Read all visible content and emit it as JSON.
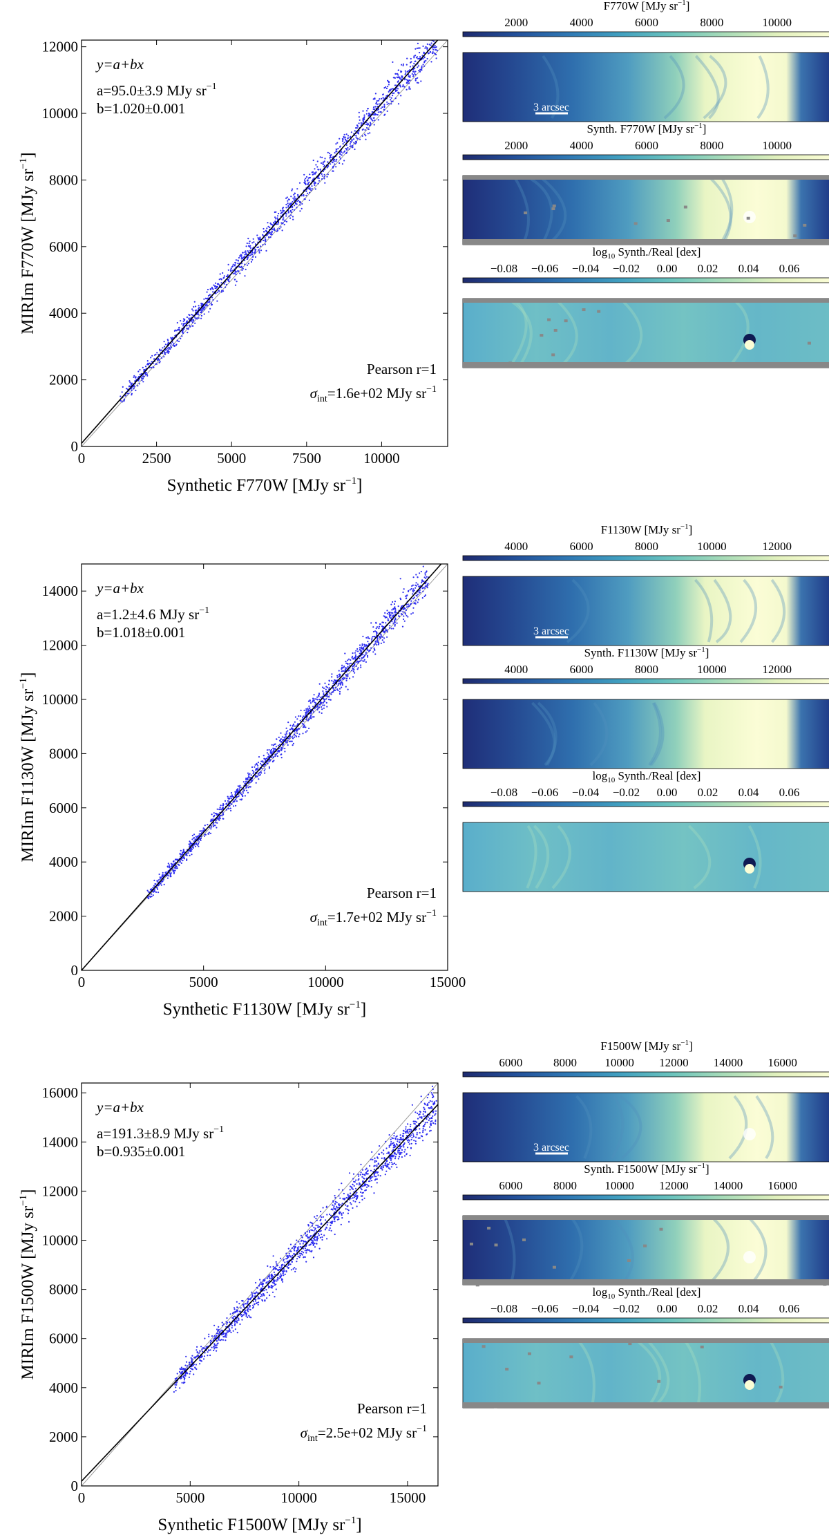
{
  "colors": {
    "points": "#2d2df0",
    "fit_line": "#000000",
    "identity_line": "#9a9a9a",
    "colormap": [
      "#1e2a6e",
      "#23509a",
      "#2f78b4",
      "#41a0c0",
      "#6cc4bd",
      "#a9dcb8",
      "#e2f1bd",
      "#fbfdd6"
    ],
    "masked": "#888888"
  },
  "scale_bar_label": "3 arcsec",
  "chart_data": [
    {
      "type": "scatter",
      "filter": "F770W",
      "xlabel": "Synthetic F770W [MJy sr",
      "ylabel": "MIRIm F770W [MJy sr",
      "unit_exp": "−1",
      "xlim": [
        0,
        12200
      ],
      "ylim": [
        0,
        12200
      ],
      "xticks": [
        0,
        2500,
        5000,
        7500,
        10000
      ],
      "yticks": [
        0,
        2000,
        4000,
        6000,
        8000,
        10000,
        12000
      ],
      "model": "y=a+bx",
      "a_text": "a=95.0±3.9 MJy sr",
      "b_text": "b=1.020±0.001",
      "pearson_text": "Pearson r=1",
      "sigma_text": "=1.6e+02 MJy sr",
      "fit": {
        "a": 95.0,
        "b": 1.02
      },
      "data_range": [
        1300,
        11900
      ],
      "scatter_width": 180,
      "maps": [
        {
          "label": "F770W [MJy sr",
          "ticks": [
            "2000",
            "4000",
            "6000",
            "8000",
            "10000"
          ],
          "kind": "image",
          "mask": false,
          "scale_bar": true
        },
        {
          "label": "Synth. F770W [MJy sr",
          "ticks": [
            "2000",
            "4000",
            "6000",
            "8000",
            "10000"
          ],
          "kind": "image",
          "mask": true,
          "scale_bar": false
        },
        {
          "label": "log10 Synth./Real [dex]",
          "ticks": [
            "−0.08",
            "−0.06",
            "−0.04",
            "−0.02",
            "0.00",
            "0.02",
            "0.04",
            "0.06"
          ],
          "kind": "ratio",
          "mask": true,
          "scale_bar": false
        }
      ]
    },
    {
      "type": "scatter",
      "filter": "F1130W",
      "xlabel": "Synthetic F1130W [MJy sr",
      "ylabel": "MIRIm F1130W [MJy sr",
      "unit_exp": "−1",
      "xlim": [
        0,
        15000
      ],
      "ylim": [
        0,
        15000
      ],
      "xticks": [
        0,
        5000,
        10000,
        15000
      ],
      "yticks": [
        0,
        2000,
        4000,
        6000,
        8000,
        10000,
        12000,
        14000
      ],
      "model": "y=a+bx",
      "a_text": "a=1.2±4.6 MJy sr",
      "b_text": "b=1.018±0.001",
      "pearson_text": "Pearson r=1",
      "sigma_text": "=1.7e+02 MJy sr",
      "fit": {
        "a": 1.2,
        "b": 1.018
      },
      "data_range": [
        2700,
        14200
      ],
      "scatter_width": 200,
      "maps": [
        {
          "label": "F1130W [MJy sr",
          "ticks": [
            "4000",
            "6000",
            "8000",
            "10000",
            "12000"
          ],
          "kind": "image",
          "mask": false,
          "scale_bar": true
        },
        {
          "label": "Synth. F1130W [MJy sr",
          "ticks": [
            "4000",
            "6000",
            "8000",
            "10000",
            "12000"
          ],
          "kind": "image",
          "mask": false,
          "scale_bar": false
        },
        {
          "label": "log10 Synth./Real [dex]",
          "ticks": [
            "−0.08",
            "−0.06",
            "−0.04",
            "−0.02",
            "0.00",
            "0.02",
            "0.04",
            "0.06"
          ],
          "kind": "ratio",
          "mask": false,
          "scale_bar": false
        }
      ]
    },
    {
      "type": "scatter",
      "filter": "F1500W",
      "xlabel": "Synthetic F1500W [MJy sr",
      "ylabel": "MIRIm F1500W [MJy sr",
      "unit_exp": "−1",
      "xlim": [
        0,
        16400
      ],
      "ylim": [
        0,
        16400
      ],
      "xticks": [
        0,
        5000,
        10000,
        15000
      ],
      "yticks": [
        0,
        2000,
        4000,
        6000,
        8000,
        10000,
        12000,
        14000,
        16000
      ],
      "model": "y=a+bx",
      "a_text": "a=191.3±8.9 MJy sr",
      "b_text": "b=0.935±0.001",
      "pearson_text": "Pearson r=1",
      "sigma_text": "=2.5e+02 MJy sr",
      "fit": {
        "a": 191.3,
        "b": 0.935
      },
      "data_range": [
        4300,
        16300
      ],
      "scatter_width": 300,
      "maps": [
        {
          "label": "F1500W [MJy sr",
          "ticks": [
            "6000",
            "8000",
            "10000",
            "12000",
            "14000",
            "16000"
          ],
          "kind": "image",
          "mask": false,
          "scale_bar": true
        },
        {
          "label": "Synth. F1500W [MJy sr",
          "ticks": [
            "6000",
            "8000",
            "10000",
            "12000",
            "14000",
            "16000"
          ],
          "kind": "image",
          "mask": true,
          "scale_bar": false
        },
        {
          "label": "log10 Synth./Real [dex]",
          "ticks": [
            "−0.08",
            "−0.06",
            "−0.04",
            "−0.02",
            "0.00",
            "0.02",
            "0.04",
            "0.06"
          ],
          "kind": "ratio",
          "mask": true,
          "scale_bar": false
        }
      ]
    }
  ]
}
